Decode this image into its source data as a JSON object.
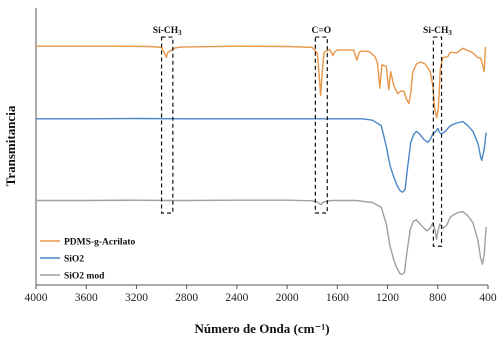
{
  "chart_data": {
    "type": "line",
    "xlabel": "Número de Onda (cm⁻¹)",
    "ylabel": "Transmitancia",
    "xlim": [
      4000,
      400
    ],
    "x_reversed": true,
    "xticks": [
      4000,
      3600,
      3200,
      2800,
      2400,
      2000,
      1600,
      1200,
      800,
      400
    ],
    "ylim": [
      0,
      1
    ],
    "grid": false,
    "legend_position": "bottom-left",
    "series": [
      {
        "name": "PDMS-g-Acrilato",
        "color": "#e8964a",
        "points": [
          [
            4000,
            0.862
          ],
          [
            3700,
            0.862
          ],
          [
            3400,
            0.862
          ],
          [
            3100,
            0.861
          ],
          [
            3000,
            0.858
          ],
          [
            2975,
            0.835
          ],
          [
            2962,
            0.822
          ],
          [
            2950,
            0.84
          ],
          [
            2905,
            0.852
          ],
          [
            2890,
            0.856
          ],
          [
            2850,
            0.859
          ],
          [
            2400,
            0.862
          ],
          [
            2000,
            0.861
          ],
          [
            1800,
            0.858
          ],
          [
            1760,
            0.838
          ],
          [
            1745,
            0.76
          ],
          [
            1733,
            0.685
          ],
          [
            1722,
            0.76
          ],
          [
            1705,
            0.84
          ],
          [
            1660,
            0.85
          ],
          [
            1635,
            0.828
          ],
          [
            1620,
            0.842
          ],
          [
            1600,
            0.848
          ],
          [
            1470,
            0.848
          ],
          [
            1445,
            0.812
          ],
          [
            1425,
            0.84
          ],
          [
            1410,
            0.845
          ],
          [
            1350,
            0.843
          ],
          [
            1300,
            0.825
          ],
          [
            1280,
            0.8
          ],
          [
            1262,
            0.71
          ],
          [
            1245,
            0.795
          ],
          [
            1210,
            0.79
          ],
          [
            1190,
            0.705
          ],
          [
            1175,
            0.77
          ],
          [
            1150,
            0.72
          ],
          [
            1120,
            0.69
          ],
          [
            1095,
            0.7
          ],
          [
            1070,
            0.7
          ],
          [
            1050,
            0.672
          ],
          [
            1030,
            0.655
          ],
          [
            1015,
            0.695
          ],
          [
            1000,
            0.768
          ],
          [
            970,
            0.798
          ],
          [
            940,
            0.805
          ],
          [
            900,
            0.798
          ],
          [
            860,
            0.77
          ],
          [
            840,
            0.72
          ],
          [
            825,
            0.64
          ],
          [
            808,
            0.604
          ],
          [
            795,
            0.64
          ],
          [
            780,
            0.78
          ],
          [
            760,
            0.82
          ],
          [
            720,
            0.825
          ],
          [
            700,
            0.84
          ],
          [
            650,
            0.838
          ],
          [
            600,
            0.855
          ],
          [
            520,
            0.838
          ],
          [
            480,
            0.82
          ],
          [
            460,
            0.82
          ],
          [
            440,
            0.79
          ],
          [
            430,
            0.77
          ],
          [
            420,
            0.86
          ]
        ]
      },
      {
        "name": "SiO2",
        "color": "#4a86c8",
        "points": [
          [
            4000,
            0.6
          ],
          [
            3600,
            0.6
          ],
          [
            3200,
            0.601
          ],
          [
            2800,
            0.6
          ],
          [
            2400,
            0.6
          ],
          [
            2000,
            0.6
          ],
          [
            1800,
            0.6
          ],
          [
            1600,
            0.6
          ],
          [
            1400,
            0.6
          ],
          [
            1320,
            0.595
          ],
          [
            1250,
            0.575
          ],
          [
            1210,
            0.5
          ],
          [
            1180,
            0.43
          ],
          [
            1150,
            0.39
          ],
          [
            1125,
            0.36
          ],
          [
            1100,
            0.34
          ],
          [
            1080,
            0.335
          ],
          [
            1060,
            0.345
          ],
          [
            1040,
            0.425
          ],
          [
            1015,
            0.515
          ],
          [
            990,
            0.545
          ],
          [
            970,
            0.555
          ],
          [
            945,
            0.545
          ],
          [
            910,
            0.525
          ],
          [
            880,
            0.515
          ],
          [
            860,
            0.525
          ],
          [
            840,
            0.545
          ],
          [
            815,
            0.555
          ],
          [
            800,
            0.565
          ],
          [
            785,
            0.55
          ],
          [
            770,
            0.545
          ],
          [
            740,
            0.555
          ],
          [
            700,
            0.575
          ],
          [
            650,
            0.585
          ],
          [
            600,
            0.59
          ],
          [
            560,
            0.575
          ],
          [
            520,
            0.555
          ],
          [
            480,
            0.51
          ],
          [
            460,
            0.465
          ],
          [
            450,
            0.45
          ],
          [
            430,
            0.49
          ],
          [
            415,
            0.55
          ]
        ]
      },
      {
        "name": "SiO2 mod",
        "color": "#a0a0a0",
        "points": [
          [
            4000,
            0.305
          ],
          [
            3600,
            0.305
          ],
          [
            3200,
            0.306
          ],
          [
            2960,
            0.305
          ],
          [
            2800,
            0.305
          ],
          [
            2400,
            0.306
          ],
          [
            2000,
            0.306
          ],
          [
            1800,
            0.304
          ],
          [
            1760,
            0.3
          ],
          [
            1730,
            0.29
          ],
          [
            1712,
            0.3
          ],
          [
            1650,
            0.305
          ],
          [
            1450,
            0.305
          ],
          [
            1400,
            0.302
          ],
          [
            1320,
            0.298
          ],
          [
            1250,
            0.28
          ],
          [
            1210,
            0.22
          ],
          [
            1180,
            0.14
          ],
          [
            1150,
            0.09
          ],
          [
            1125,
            0.06
          ],
          [
            1100,
            0.04
          ],
          [
            1085,
            0.038
          ],
          [
            1065,
            0.045
          ],
          [
            1045,
            0.12
          ],
          [
            1020,
            0.2
          ],
          [
            995,
            0.23
          ],
          [
            970,
            0.235
          ],
          [
            945,
            0.222
          ],
          [
            910,
            0.205
          ],
          [
            885,
            0.195
          ],
          [
            860,
            0.205
          ],
          [
            840,
            0.225
          ],
          [
            822,
            0.2
          ],
          [
            810,
            0.165
          ],
          [
            798,
            0.195
          ],
          [
            785,
            0.22
          ],
          [
            760,
            0.205
          ],
          [
            730,
            0.215
          ],
          [
            700,
            0.245
          ],
          [
            650,
            0.26
          ],
          [
            600,
            0.265
          ],
          [
            560,
            0.25
          ],
          [
            520,
            0.225
          ],
          [
            480,
            0.16
          ],
          [
            460,
            0.1
          ],
          [
            445,
            0.075
          ],
          [
            430,
            0.11
          ],
          [
            415,
            0.21
          ]
        ]
      }
    ],
    "annotations": [
      {
        "label": "Si-CH",
        "subscript": "3",
        "x_range": [
          3000,
          2910
        ],
        "y_range": [
          0.895,
          0.26
        ]
      },
      {
        "label": "C=O",
        "subscript": "",
        "x_range": [
          1775,
          1680
        ],
        "y_range": [
          0.895,
          0.26
        ]
      },
      {
        "label": "Si-CH",
        "subscript": "3",
        "x_range": [
          835,
          770
        ],
        "y_range": [
          0.895,
          0.14
        ]
      }
    ]
  }
}
